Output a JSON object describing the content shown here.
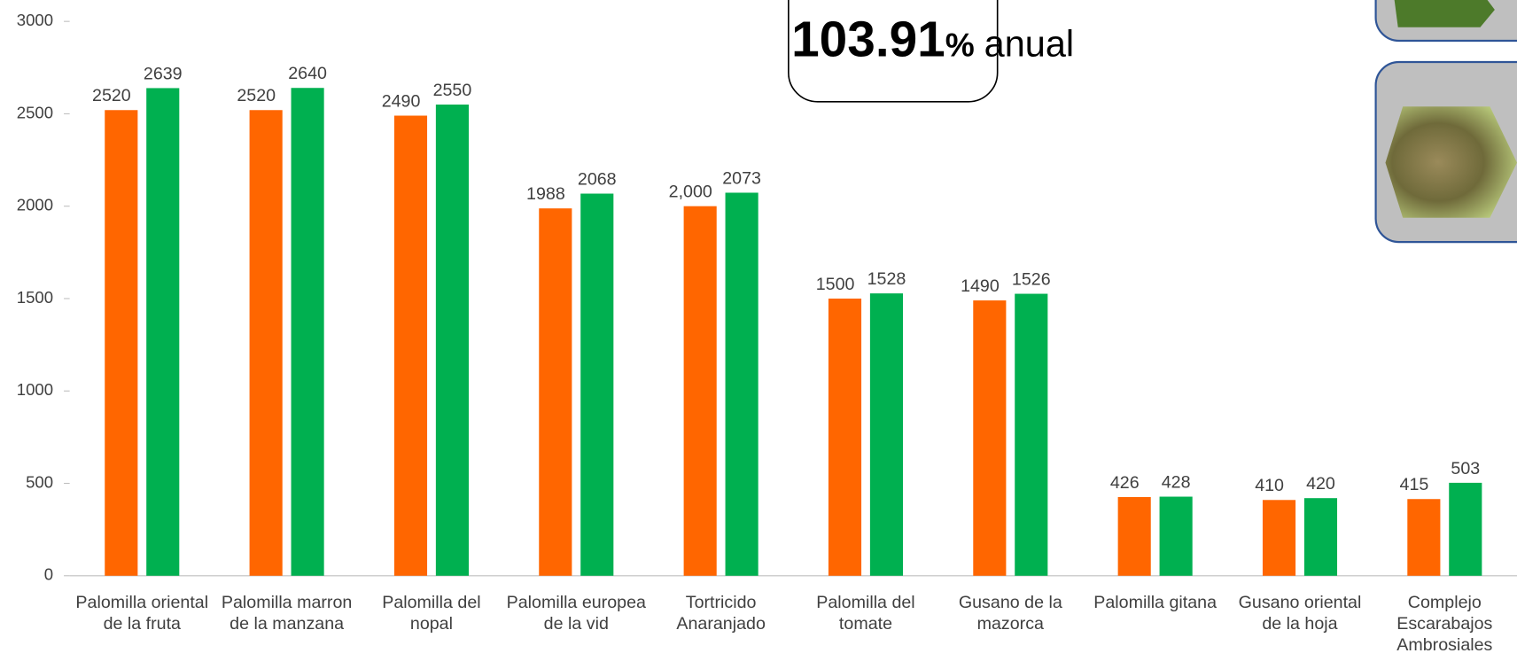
{
  "chart_data": {
    "type": "bar",
    "categories": [
      "Palomilla oriental de la fruta",
      "Palomilla marron de la manzana",
      "Palomilla del nopal",
      "Palomilla europea de la vid",
      "Tortricido Anaranjado",
      "Palomilla del tomate",
      "Gusano de la mazorca",
      "Palomilla gitana",
      "Gusano oriental de la hoja",
      "Complejo Escarabajos Ambrosiales"
    ],
    "series": [
      {
        "color": "#ff6600",
        "values": [
          2520,
          2520,
          2490,
          1988,
          2000,
          1500,
          1490,
          426,
          410,
          415
        ],
        "value_labels": [
          "2520",
          "2520",
          "2490",
          "1988",
          "2,000",
          "1500",
          "1490",
          "426",
          "410",
          "415"
        ]
      },
      {
        "color": "#00b050",
        "values": [
          2639,
          2640,
          2550,
          2068,
          2073,
          1528,
          1526,
          428,
          420,
          503
        ]
      }
    ],
    "ylim": [
      0,
      3000
    ],
    "yticks": [
      0,
      500,
      1000,
      1500,
      2000,
      2500,
      3000
    ],
    "annotation": [
      "103.91",
      "%",
      "anual"
    ]
  }
}
